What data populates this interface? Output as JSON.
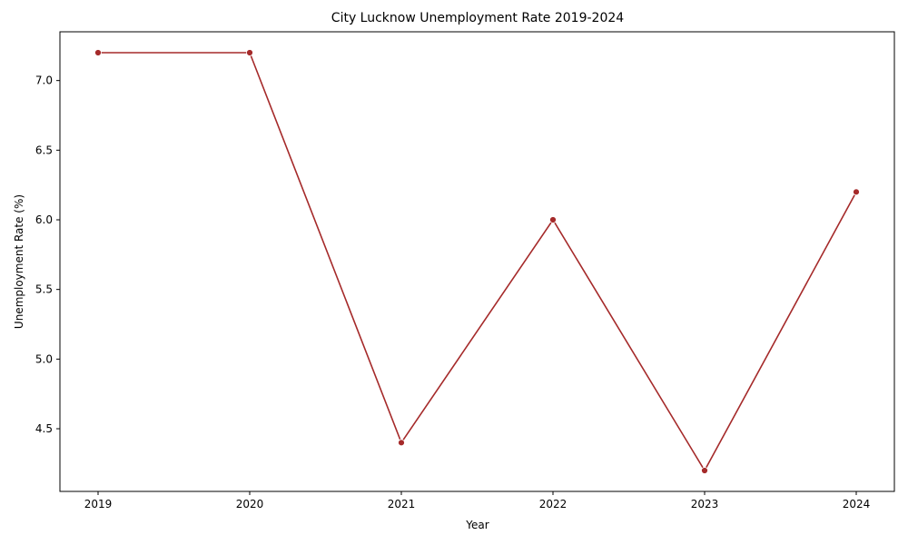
{
  "chart_data": {
    "type": "line",
    "title": "City Lucknow Unemployment Rate 2019-2024",
    "xlabel": "Year",
    "ylabel": "Unemployment Rate (%)",
    "x": [
      "2019",
      "2020",
      "2021",
      "2022",
      "2023",
      "2024"
    ],
    "series": [
      {
        "values": [
          7.2,
          7.2,
          4.4,
          6.0,
          4.2,
          6.2
        ],
        "color": "#a52a2a"
      }
    ],
    "yticks": [
      "4.5",
      "5.0",
      "5.5",
      "6.0",
      "6.5",
      "7.0"
    ],
    "ylim": [
      4.05,
      7.35
    ],
    "grid": false,
    "legend": "none",
    "marker": "circle"
  }
}
